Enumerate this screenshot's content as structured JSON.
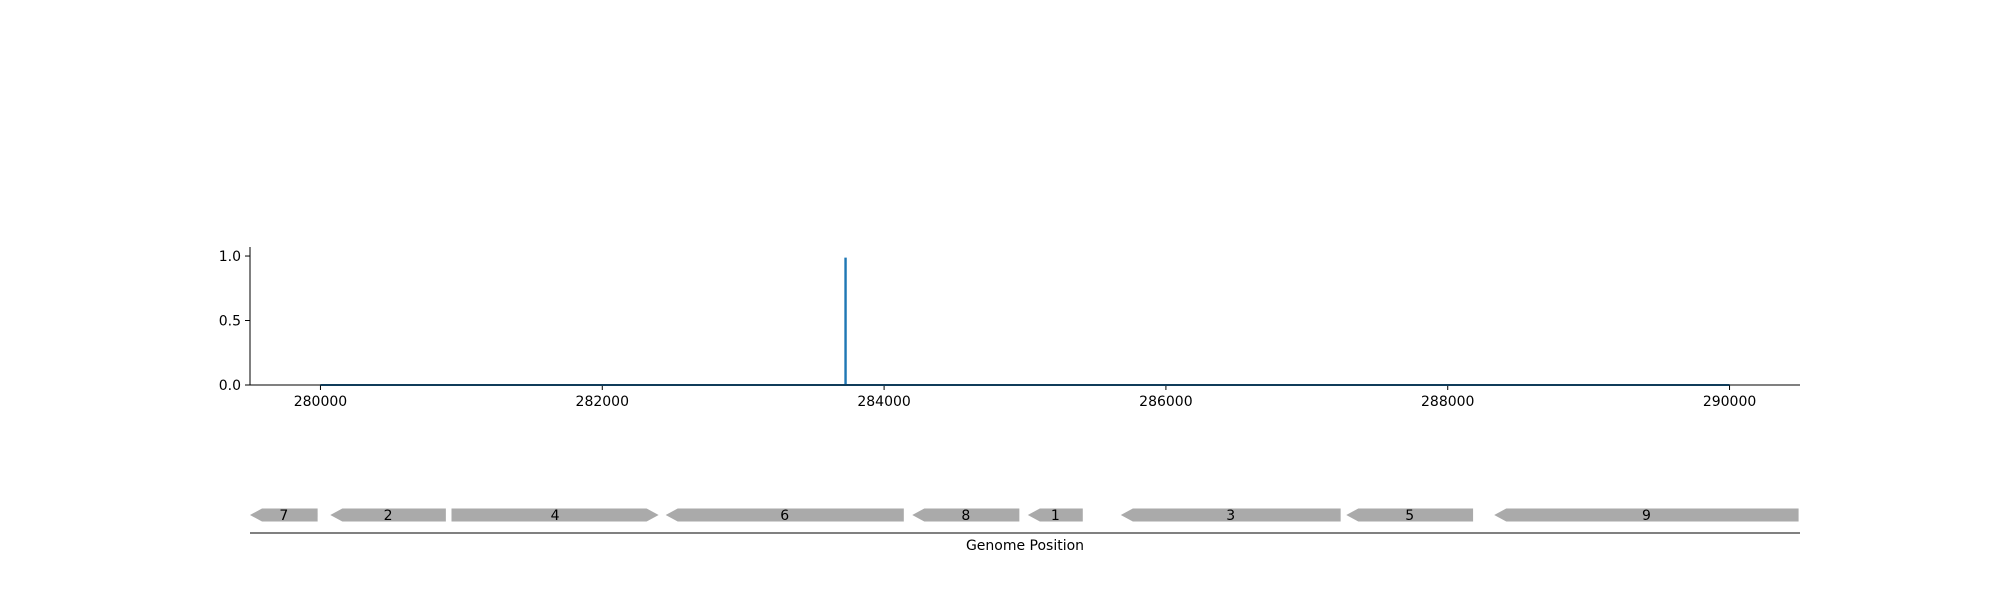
{
  "chart_data": [
    {
      "type": "line",
      "title": "",
      "xlabel": "",
      "ylabel": "",
      "xlim": [
        279500,
        290500
      ],
      "ylim": [
        0,
        1.07
      ],
      "x_ticks": [
        280000,
        282000,
        284000,
        286000,
        288000,
        290000
      ],
      "x_tick_labels": [
        "280000",
        "282000",
        "284000",
        "286000",
        "288000",
        "290000"
      ],
      "y_ticks": [
        0.0,
        0.5,
        1.0
      ],
      "y_tick_labels": [
        "0.0",
        "0.5",
        "1.0"
      ],
      "grid": false,
      "legend": "none",
      "color": "#1f77b4",
      "series": [
        {
          "x": [
            280000,
            283725,
            283725,
            283728,
            283728,
            290000
          ],
          "y": [
            0,
            0,
            0.98,
            0.98,
            0,
            0
          ]
        }
      ]
    },
    {
      "type": "gene-track",
      "xlabel": "Genome Position",
      "xlim": [
        279500,
        290500
      ],
      "color": "#aaaaaa",
      "genes": [
        {
          "label": "7",
          "start": 279500,
          "end": 279980,
          "strand": "-"
        },
        {
          "label": "2",
          "start": 280070,
          "end": 280890,
          "strand": "-"
        },
        {
          "label": "4",
          "start": 280930,
          "end": 282400,
          "strand": "+"
        },
        {
          "label": "6",
          "start": 282450,
          "end": 284140,
          "strand": "-"
        },
        {
          "label": "8",
          "start": 284200,
          "end": 284960,
          "strand": "-"
        },
        {
          "label": "1",
          "start": 285020,
          "end": 285410,
          "strand": "-"
        },
        {
          "label": "3",
          "start": 285680,
          "end": 287240,
          "strand": "-"
        },
        {
          "label": "5",
          "start": 287280,
          "end": 288180,
          "strand": "-"
        },
        {
          "label": "9",
          "start": 288330,
          "end": 290490,
          "strand": "-"
        }
      ]
    }
  ]
}
